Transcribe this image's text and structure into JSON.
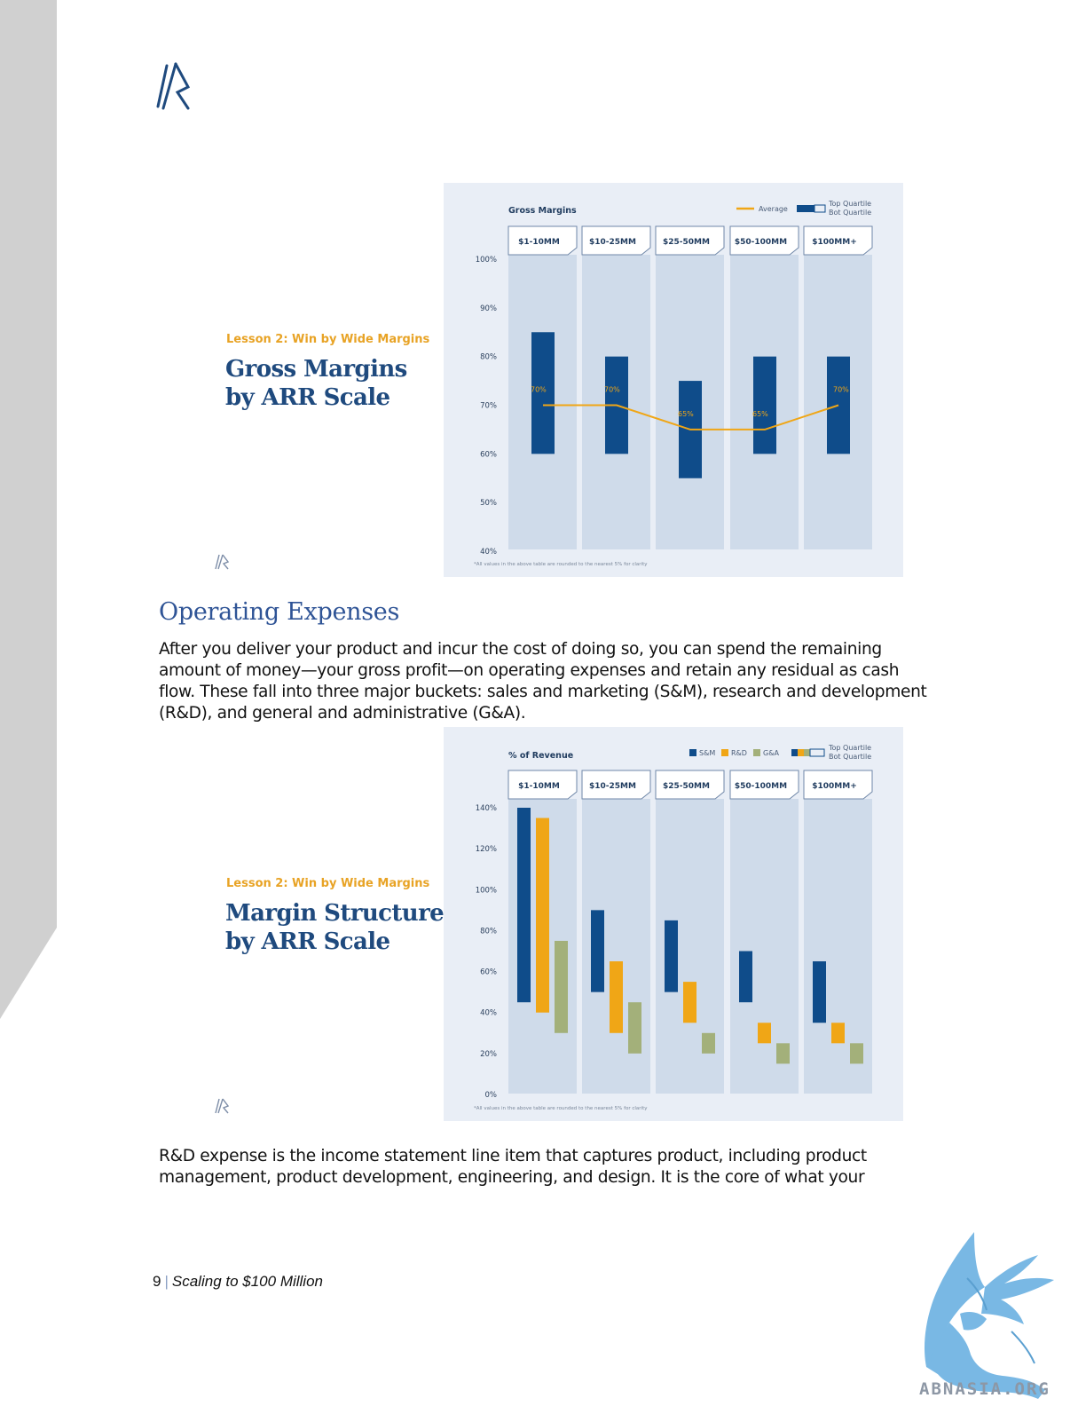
{
  "page": {
    "accent_color": "#2f5496",
    "left_band_color": "#d0d0d0",
    "logo_icon": "brand-slash-logo",
    "section_heading": "Operating Expenses",
    "paragraph_1": "After you deliver your product and incur the cost of doing so, you can spend the remaining amount of money—your gross profit—on operating expenses and retain any residual as cash flow. These fall into three major buckets: sales and marketing (S&M), research and development (R&D), and general and administrative (G&A).",
    "paragraph_2": "R&D expense is the income statement line item that captures product, including product management, product development, engineering, and design. It is the core of what your",
    "footer": {
      "page_number": "9",
      "separator": "|",
      "doc_title": "Scaling to $100 Million"
    },
    "watermark": {
      "icon": "griffin-watermark-icon",
      "text": "ABNASIA.ORG",
      "color": "#79b8e4"
    }
  },
  "slides": [
    {
      "lesson_label": "Lesson 2: Win by Wide Margins",
      "title_lines": [
        "Gross Margins",
        "by ARR Scale"
      ]
    },
    {
      "lesson_label": "Lesson 2: Win by Wide Margins",
      "title_lines": [
        "Margin Structure",
        "by ARR Scale"
      ]
    }
  ],
  "chart_data": [
    {
      "type": "bar",
      "title": "Gross Margins",
      "categories": [
        "$1-10MM",
        "$10-25MM",
        "$25-50MM",
        "$50-100MM",
        "$100MM+"
      ],
      "legend": {
        "placement": "top-right",
        "average_label": "Average",
        "quartile_labels": [
          "Top Quartile",
          "Bot Quartile"
        ]
      },
      "y_ticks": [
        "100%",
        "90%",
        "80%",
        "70%",
        "60%",
        "50%",
        "40%"
      ],
      "ylim": [
        40,
        100
      ],
      "series": [
        {
          "name": "Top Quartile",
          "color": "#0f4c8a",
          "ranges": [
            [
              60,
              85
            ],
            [
              60,
              80
            ],
            [
              55,
              75
            ],
            [
              60,
              80
            ],
            [
              60,
              80
            ]
          ]
        }
      ],
      "average": {
        "color": "#f0a616",
        "values": [
          70,
          70,
          65,
          65,
          70
        ],
        "labels": [
          "70%",
          "70%",
          "65%",
          "65%",
          "70%"
        ]
      },
      "footnote": "*All values in the above table are rounded to the nearest 5% for clarity"
    },
    {
      "type": "bar",
      "title": "% of Revenue",
      "categories": [
        "$1-10MM",
        "$10-25MM",
        "$25-50MM",
        "$50-100MM",
        "$100MM+"
      ],
      "legend": {
        "placement": "top-right",
        "quartile_labels": [
          "Top Quartile",
          "Bot Quartile"
        ]
      },
      "y_ticks": [
        "140%",
        "120%",
        "100%",
        "80%",
        "60%",
        "40%",
        "20%",
        "0%"
      ],
      "ylim": [
        0,
        140
      ],
      "series": [
        {
          "name": "S&M",
          "color": "#0f4c8a",
          "ranges": [
            [
              45,
              140
            ],
            [
              50,
              90
            ],
            [
              50,
              85
            ],
            [
              45,
              70
            ],
            [
              35,
              65
            ]
          ]
        },
        {
          "name": "R&D",
          "color": "#f0a616",
          "ranges": [
            [
              40,
              135
            ],
            [
              30,
              65
            ],
            [
              35,
              55
            ],
            [
              25,
              35
            ],
            [
              25,
              35
            ]
          ]
        },
        {
          "name": "G&A",
          "color": "#a3b07a",
          "ranges": [
            [
              30,
              75
            ],
            [
              20,
              45
            ],
            [
              20,
              30
            ],
            [
              15,
              25
            ],
            [
              15,
              25
            ]
          ]
        }
      ],
      "footnote": "*All values in the above table are rounded to the nearest 5% for clarity"
    }
  ]
}
